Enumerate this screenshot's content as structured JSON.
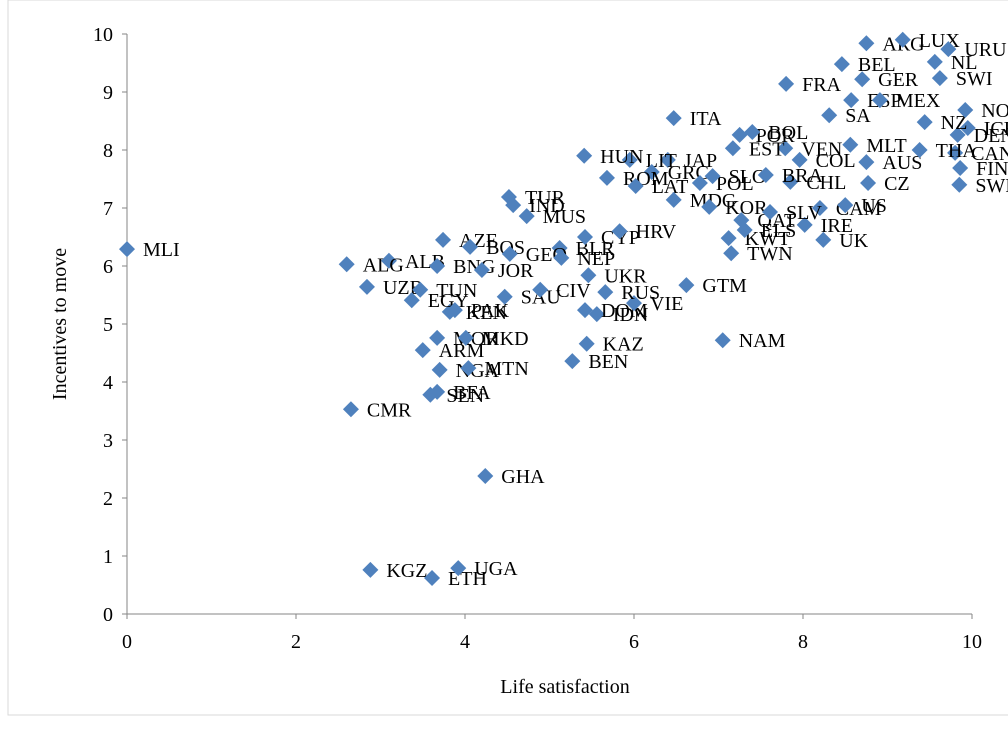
{
  "chart_data": {
    "type": "scatter",
    "x_label": "Life satisfaction",
    "y_label": "Incentives to move",
    "color": "#4f81bd",
    "xlim": [
      0,
      10
    ],
    "xticks": [
      0,
      2,
      4,
      6,
      8,
      10
    ],
    "ylim": [
      0,
      10
    ],
    "yticks": [
      0,
      1,
      2,
      3,
      4,
      5,
      6,
      7,
      8,
      9,
      10
    ],
    "labels": [
      "MLI",
      "KGZ",
      "ETH",
      "UGA",
      "GHA",
      "CMR",
      "SEN",
      "BFA",
      "NGA",
      "MTN",
      "ARM",
      "MOR",
      "MKD",
      "KEN",
      "KAZ",
      "BEN",
      "NAM",
      "IDN",
      "DOM",
      "VIE",
      "GTM",
      "TWN",
      "KWT",
      "ELS",
      "IRE",
      "UK",
      "CAM",
      "US",
      "CZ",
      "SWE",
      "FIN",
      "CAN",
      "AUS",
      "THA",
      "DEN",
      "ICE",
      "NZ",
      "NOR",
      "SA",
      "ESP",
      "MEX",
      "SWI",
      "NL",
      "GER",
      "FRA",
      "BEL",
      "ARG",
      "LUX",
      "URU",
      "MLT",
      "VEN",
      "COL",
      "CHL",
      "EST",
      "POR",
      "BOL",
      "ITA",
      "JAP",
      "LIT",
      "HUN",
      "GRC",
      "ROM",
      "LAT",
      "POL",
      "SLO",
      "BRA",
      "MDG",
      "KOR",
      "QAT",
      "SLV",
      "TUR",
      "IND",
      "MUS",
      "BLR",
      "CYP",
      "HRV",
      "AZE",
      "ALB",
      "ALG",
      "BOS",
      "BNG",
      "GEO",
      "NEP",
      "JOR",
      "UZB",
      "EGY",
      "TUN",
      "PAK",
      "SAU",
      "CIV",
      "UKR",
      "RUS"
    ],
    "x": [
      0,
      2.88,
      3.61,
      3.92,
      4.24,
      2.65,
      3.59,
      3.67,
      3.7,
      4.04,
      3.5,
      3.67,
      4.01,
      3.82,
      5.44,
      5.27,
      7.05,
      5.56,
      5.42,
      6.0,
      6.62,
      7.15,
      7.12,
      7.31,
      8.02,
      8.24,
      8.2,
      8.5,
      8.77,
      9.85,
      9.86,
      9.8,
      8.75,
      9.38,
      9.83,
      9.95,
      9.44,
      9.92,
      8.31,
      8.57,
      8.91,
      9.62,
      9.56,
      8.7,
      7.8,
      8.46,
      8.75,
      9.18,
      9.72,
      8.56,
      7.79,
      7.96,
      7.85,
      7.17,
      7.25,
      7.4,
      6.47,
      6.4,
      5.95,
      5.41,
      6.21,
      5.68,
      6.02,
      6.78,
      6.93,
      7.56,
      6.47,
      6.89,
      7.27,
      7.61,
      4.52,
      4.57,
      4.73,
      5.12,
      5.42,
      5.83,
      3.74,
      3.1,
      2.6,
      4.06,
      3.67,
      4.53,
      5.14,
      4.2,
      2.84,
      3.37,
      3.47,
      3.88,
      4.47,
      4.89,
      5.46,
      5.66
    ],
    "values": [
      6.29,
      0.76,
      0.62,
      0.79,
      2.38,
      3.53,
      3.78,
      3.83,
      4.21,
      4.24,
      4.55,
      4.76,
      4.76,
      5.21,
      4.66,
      4.36,
      4.72,
      5.17,
      5.24,
      5.36,
      5.67,
      6.22,
      6.48,
      6.62,
      6.71,
      6.45,
      7.0,
      7.05,
      7.43,
      7.4,
      7.69,
      7.95,
      7.79,
      8.0,
      8.26,
      8.38,
      8.48,
      8.69,
      8.6,
      8.86,
      8.86,
      9.24,
      9.52,
      9.22,
      9.14,
      9.48,
      9.84,
      9.9,
      9.74,
      8.09,
      8.03,
      7.83,
      7.45,
      8.03,
      8.26,
      8.31,
      8.55,
      7.83,
      7.83,
      7.9,
      7.62,
      7.52,
      7.38,
      7.43,
      7.55,
      7.57,
      7.14,
      7.02,
      6.79,
      6.93,
      7.19,
      7.05,
      6.86,
      6.31,
      6.5,
      6.6,
      6.45,
      6.09,
      6.03,
      6.33,
      6.0,
      6.21,
      6.14,
      5.93,
      5.64,
      5.41,
      5.59,
      5.24,
      5.47,
      5.59,
      5.84,
      5.55
    ]
  }
}
